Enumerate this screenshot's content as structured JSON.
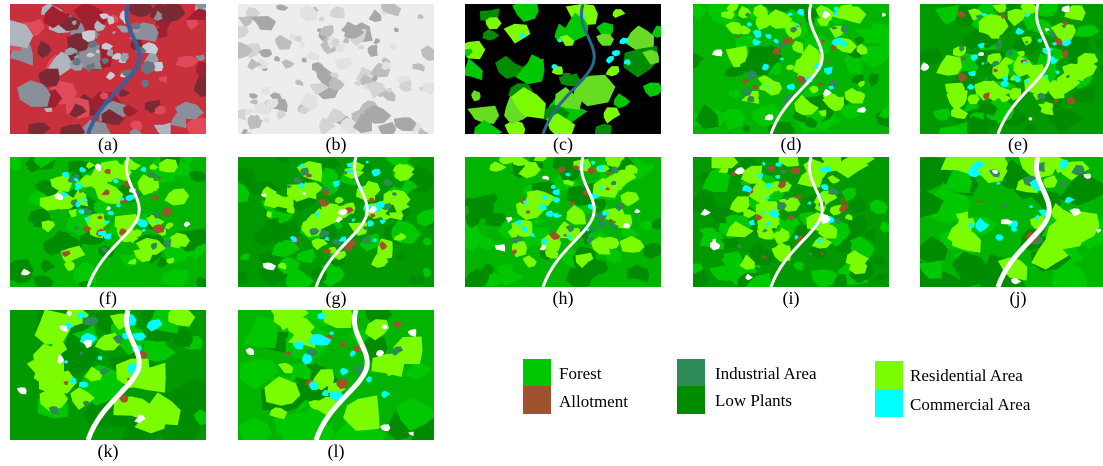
{
  "panels": [
    {
      "label": "(a)",
      "kind": "satellite"
    },
    {
      "label": "(b)",
      "kind": "gray"
    },
    {
      "label": "(c)",
      "kind": "mask"
    },
    {
      "label": "(d)",
      "kind": "classmap"
    },
    {
      "label": "(e)",
      "kind": "classmap"
    },
    {
      "label": "(f)",
      "kind": "classmap"
    },
    {
      "label": "(g)",
      "kind": "classmap"
    },
    {
      "label": "(h)",
      "kind": "classmap"
    },
    {
      "label": "(i)",
      "kind": "classmap"
    },
    {
      "label": "(j)",
      "kind": "classmap"
    },
    {
      "label": "(k)",
      "kind": "classmap"
    },
    {
      "label": "(l)",
      "kind": "classmap"
    }
  ],
  "legend": [
    {
      "label": "Forest",
      "color": "#00c800"
    },
    {
      "label": "Allotment",
      "color": "#a0522d"
    },
    {
      "label": "Industrial Area",
      "color": "#2e8b57"
    },
    {
      "label": "Low Plants",
      "color": "#008c00"
    },
    {
      "label": "Residential Area",
      "color": "#7cfc00"
    },
    {
      "label": "Commercial Area",
      "color": "#00ffff"
    }
  ]
}
